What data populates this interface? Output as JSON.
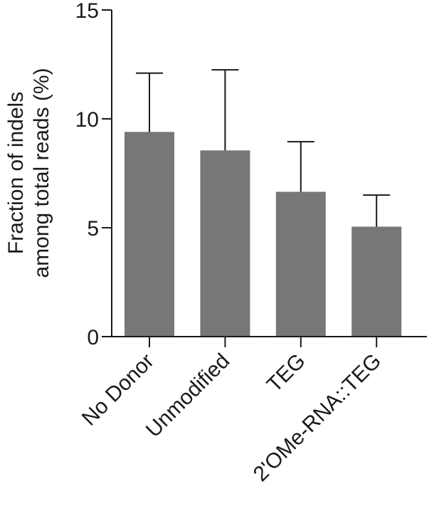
{
  "chart_data": {
    "type": "bar",
    "title": "",
    "categories": [
      "No Donor",
      "Unmodified",
      "TEG",
      "2'OMe-RNA::TEG"
    ],
    "values": [
      9.4,
      8.55,
      6.65,
      5.05
    ],
    "error_upper": [
      12.1,
      12.25,
      8.95,
      6.5
    ],
    "ylabel_lines": [
      "Fraction of indels",
      "among total reads (%)"
    ],
    "xlabel": "",
    "ylim": [
      0,
      15
    ],
    "yticks": [
      0,
      5,
      10,
      15
    ],
    "grid": false,
    "bar_color": "#777777",
    "axis_color": "#1a1a1a"
  }
}
